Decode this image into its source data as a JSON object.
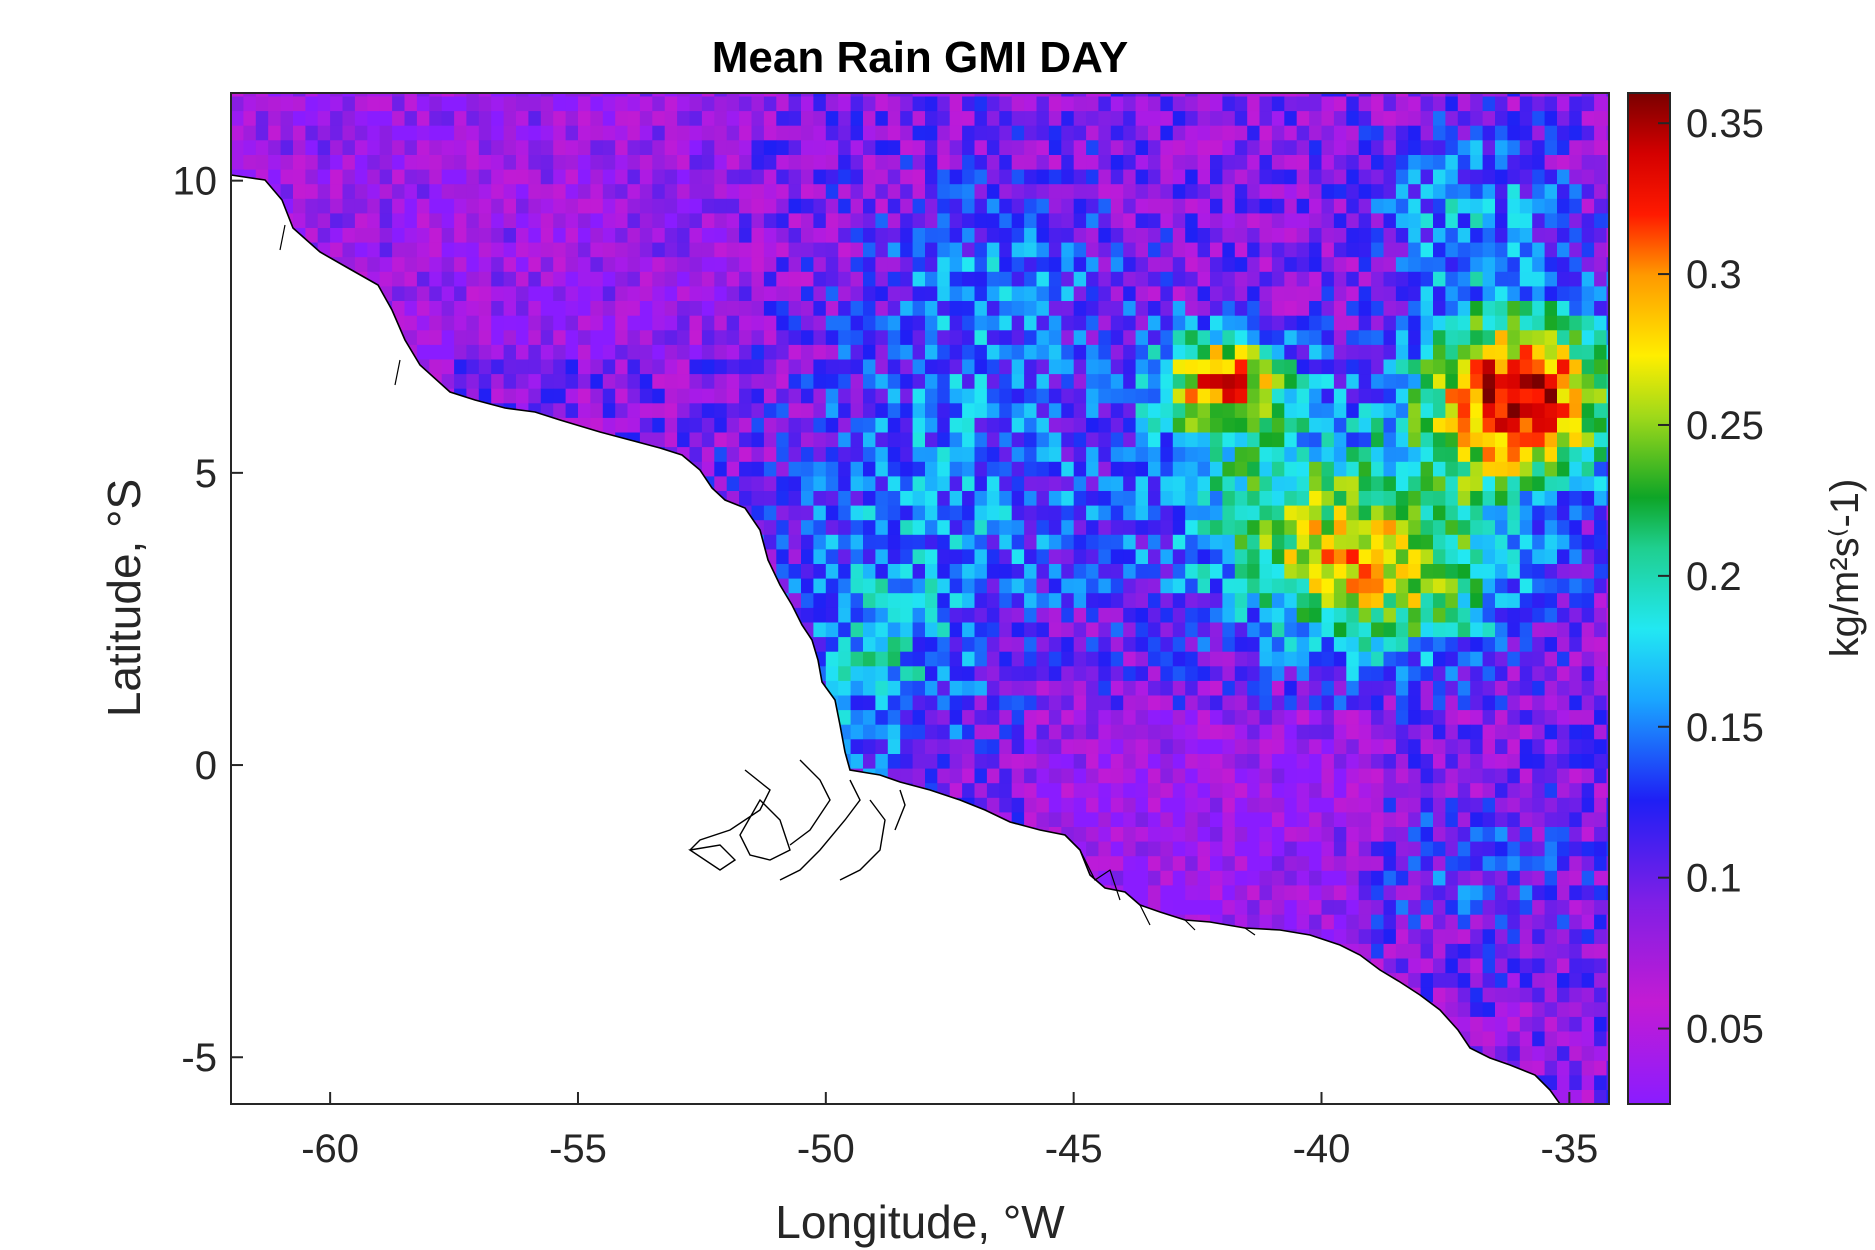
{
  "title": "Mean Rain GMI DAY",
  "x_axis": {
    "label": "Longitude, °W",
    "ticks": [
      "-60",
      "-55",
      "-50",
      "-45",
      "-40",
      "-35"
    ],
    "tick_values": [
      -60,
      -55,
      -50,
      -45,
      -40,
      -35
    ],
    "range": [
      -62,
      -34.2
    ]
  },
  "y_axis": {
    "label": "Latitude, °S",
    "ticks": [
      "10",
      "5",
      "0",
      "-5"
    ],
    "tick_values": [
      10,
      5,
      0,
      -5
    ],
    "range": [
      -5.8,
      11.5
    ]
  },
  "colorbar": {
    "label": "kg/m²s⁽-1)",
    "ticks": [
      "0.35",
      "0.3",
      "0.25",
      "0.2",
      "0.15",
      "0.1",
      "0.05"
    ],
    "tick_values": [
      0.35,
      0.3,
      0.25,
      0.2,
      0.15,
      0.1,
      0.05
    ],
    "range": [
      0.025,
      0.36
    ],
    "colormap": "jet-like (violet → blue → cyan → green → yellow → red → dark red)"
  },
  "chart_data": {
    "type": "heatmap",
    "title": "Mean Rain GMI DAY",
    "xlabel": "Longitude, °W",
    "ylabel": "Latitude, °S",
    "xlim": [
      -62,
      -34.2
    ],
    "ylim": [
      -5.8,
      11.5
    ],
    "value_label": "kg/m²s⁽-1)",
    "value_range": [
      0.025,
      0.36
    ],
    "grid": false,
    "cell_size_deg": 0.25,
    "field_description": "Gridded ocean-only mean rain rate off the NE South American coast; land masked white",
    "regional_means": [
      {
        "region": "lon -61 to -52, lat 7 to 11",
        "value": 0.07
      },
      {
        "region": "lon -52 to -45, lat 3 to 9",
        "value": 0.14
      },
      {
        "region": "lon -43 to -40, lat 6 to 7.5",
        "value": 0.31
      },
      {
        "region": "lon -38 to -34.5, lat 5 to 7.5",
        "value": 0.34
      },
      {
        "region": "lon -40 to -35, lat 2 to 5",
        "value": 0.26
      },
      {
        "region": "lon -46 to -40, lat -3 to 1",
        "value": 0.07
      },
      {
        "region": "lon -50 to -47, lat -1 to 3",
        "value": 0.16
      },
      {
        "region": "lon -38 to -34.5, lat -5.5 to -1",
        "value": 0.09
      }
    ]
  }
}
